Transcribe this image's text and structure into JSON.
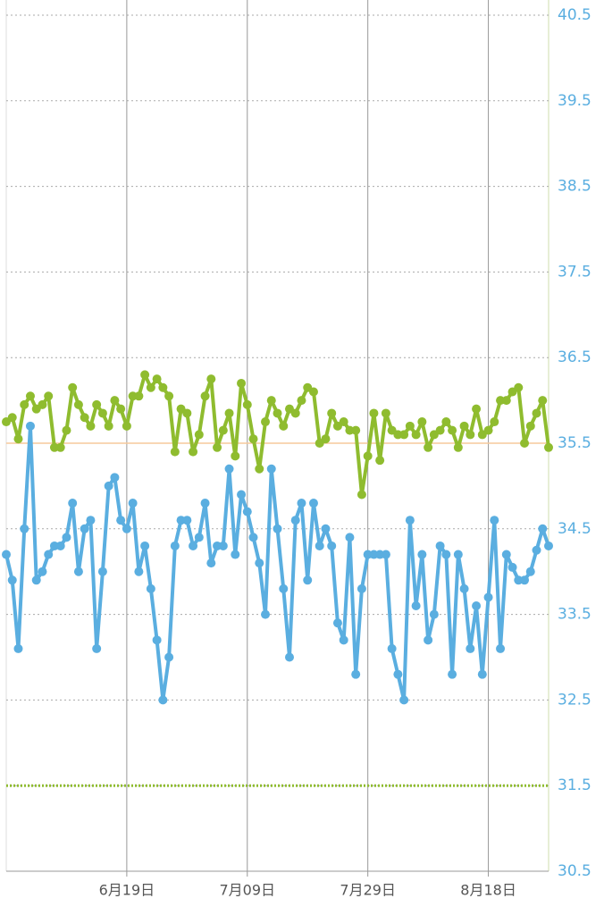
{
  "chart_data": {
    "type": "line",
    "categories": [
      null,
      null,
      null,
      null,
      null,
      null,
      null,
      null,
      null,
      null,
      null,
      null,
      null,
      null,
      null,
      null,
      null,
      null,
      null,
      null,
      "6月19日",
      null,
      null,
      null,
      null,
      null,
      null,
      null,
      null,
      null,
      null,
      null,
      null,
      null,
      null,
      null,
      null,
      null,
      null,
      null,
      "7月09日",
      null,
      null,
      null,
      null,
      null,
      null,
      null,
      null,
      null,
      null,
      null,
      null,
      null,
      null,
      null,
      null,
      null,
      null,
      null,
      "7月29日",
      null,
      null,
      null,
      null,
      null,
      null,
      null,
      null,
      null,
      null,
      null,
      null,
      null,
      null,
      null,
      null,
      null,
      null,
      null,
      "8月18日",
      null,
      null,
      null,
      null,
      null,
      null,
      null,
      null,
      null,
      null
    ],
    "series": [
      {
        "color": "#8fbc2f",
        "values": [
          35.75,
          35.8,
          35.55,
          35.95,
          36.05,
          35.9,
          35.95,
          36.05,
          35.45,
          35.45,
          35.65,
          36.15,
          35.95,
          35.8,
          35.7,
          35.95,
          35.85,
          35.7,
          36.0,
          35.9,
          35.7,
          36.05,
          36.05,
          36.3,
          36.15,
          36.25,
          36.15,
          36.05,
          35.4,
          35.9,
          35.85,
          35.4,
          35.6,
          36.05,
          36.25,
          35.45,
          35.65,
          35.85,
          35.35,
          36.2,
          35.95,
          35.55,
          35.2,
          35.75,
          36.0,
          35.85,
          35.7,
          35.9,
          35.85,
          36.0,
          36.15,
          36.1,
          35.5,
          35.55,
          35.85,
          35.7,
          35.75,
          35.65,
          35.65,
          34.9,
          35.35,
          35.85,
          35.3,
          35.85,
          35.65,
          35.6,
          35.6,
          35.7,
          35.6,
          35.75,
          35.45,
          35.6,
          35.65,
          35.75,
          35.65,
          35.45,
          35.7,
          35.6,
          35.9,
          35.6,
          35.65,
          35.75,
          36.0,
          36.0,
          36.1,
          36.15,
          35.5,
          35.7,
          35.85,
          36.0,
          35.45
        ]
      },
      {
        "color": "#5aaee0",
        "values": [
          34.2,
          33.9,
          33.1,
          34.5,
          35.7,
          33.9,
          34.0,
          34.2,
          34.3,
          34.3,
          34.4,
          34.8,
          34.0,
          34.5,
          34.6,
          33.1,
          34.0,
          35.0,
          35.1,
          34.6,
          34.5,
          34.8,
          34.0,
          34.3,
          33.8,
          33.2,
          32.5,
          33.0,
          34.3,
          34.6,
          34.6,
          34.3,
          34.4,
          34.8,
          34.1,
          34.3,
          34.3,
          35.2,
          34.2,
          34.9,
          34.7,
          34.4,
          34.1,
          33.5,
          35.2,
          34.5,
          33.8,
          33.0,
          34.6,
          34.8,
          33.9,
          34.8,
          34.3,
          34.5,
          34.3,
          33.4,
          33.2,
          34.4,
          32.8,
          33.8,
          34.2,
          34.2,
          34.2,
          34.2,
          33.1,
          32.8,
          32.5,
          34.6,
          33.6,
          34.2,
          33.2,
          33.5,
          34.3,
          34.2,
          32.8,
          34.2,
          33.8,
          33.1,
          33.6,
          32.8,
          33.7,
          34.6,
          33.1,
          34.2,
          34.05,
          33.9,
          33.9,
          34.0,
          34.25,
          34.5,
          34.3
        ]
      }
    ],
    "ylim": [
      30.5,
      40.5
    ],
    "yticks": [
      30.5,
      31.5,
      32.5,
      33.5,
      34.5,
      35.5,
      36.5,
      37.5,
      38.5,
      39.5,
      40.5
    ],
    "grid": true,
    "reference_lines": [
      {
        "value": 35.5,
        "color": "#f5c99b",
        "style": "solid"
      },
      {
        "value": 31.5,
        "color": "#8fbc2f",
        "style": "dotted"
      }
    ]
  }
}
